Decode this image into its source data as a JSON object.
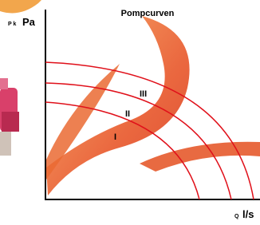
{
  "header": {
    "title": "Pompcurven"
  },
  "axes": {
    "y_label_prefix": "P k",
    "y_label_unit": "Pa",
    "x_label_prefix": "Q",
    "x_label_unit": "l/s"
  },
  "curves": [
    {
      "label": "III"
    },
    {
      "label": "II"
    },
    {
      "label": "I"
    }
  ]
}
